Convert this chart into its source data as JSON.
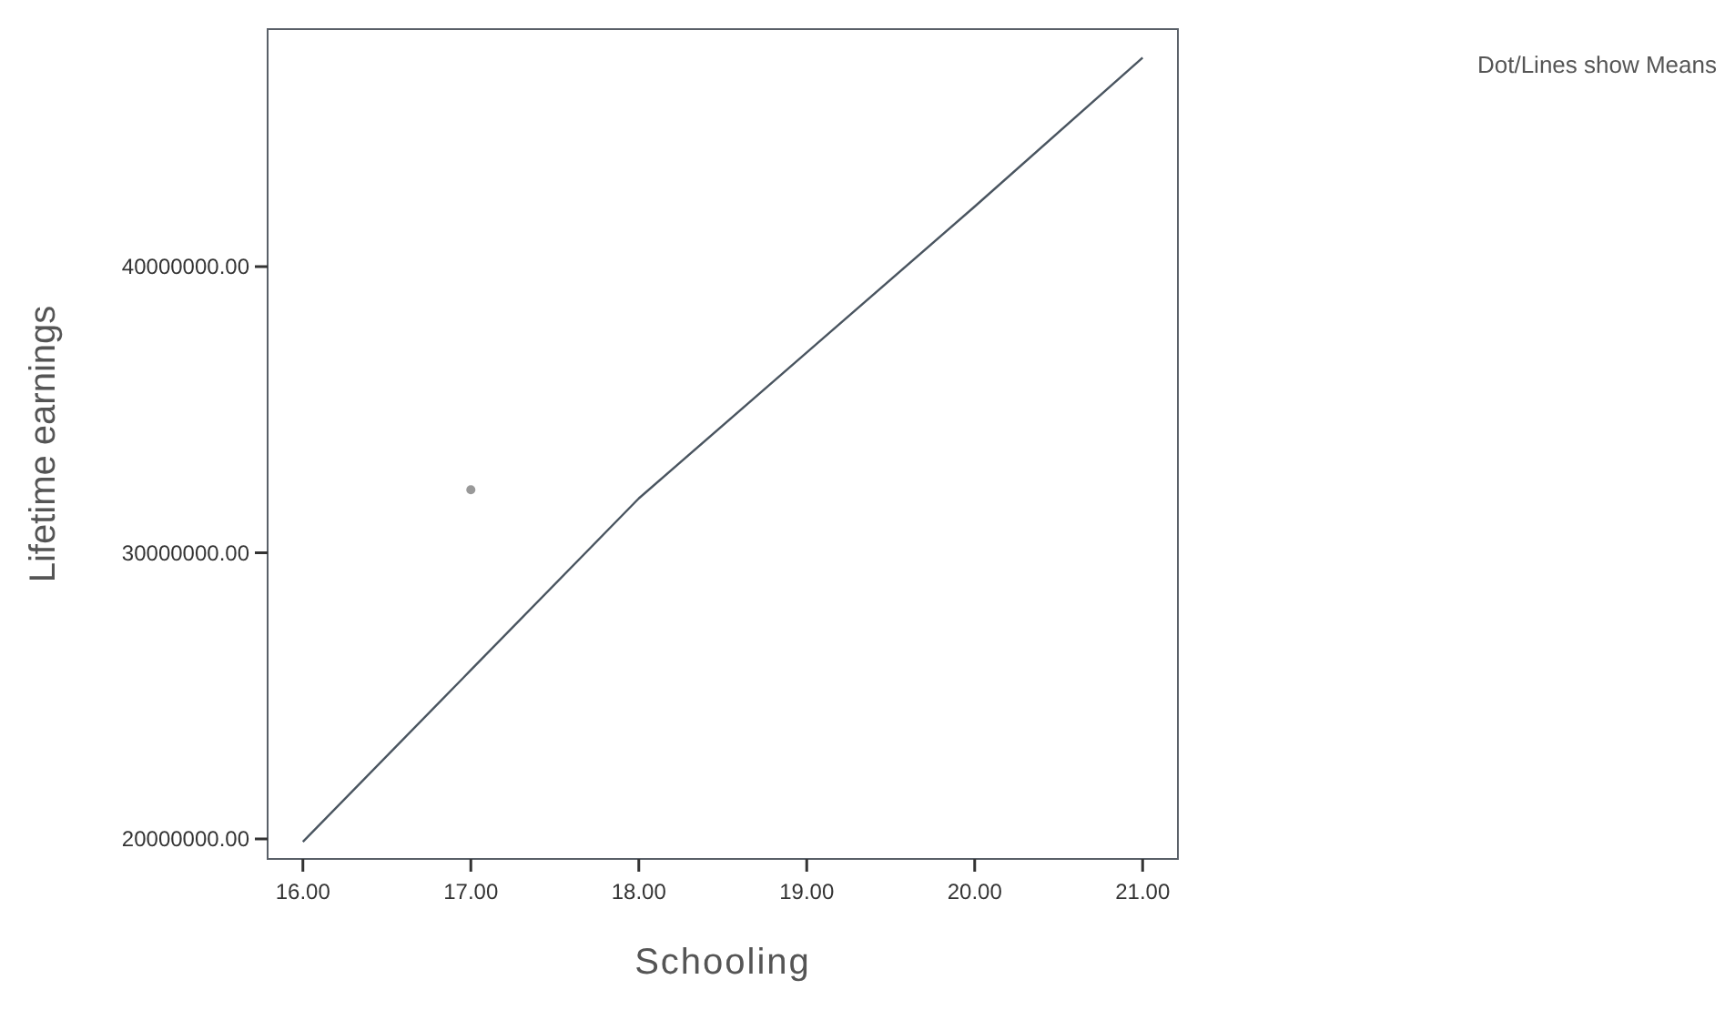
{
  "chart_data": {
    "type": "line",
    "xlabel": "Schooling",
    "ylabel": "Lifetime earnings",
    "annotations": [
      "Dot/Lines show Means"
    ],
    "xlim": [
      15.79,
      21.21
    ],
    "xticks": [
      {
        "value": 16,
        "label": "16.00"
      },
      {
        "value": 17,
        "label": "17.00"
      },
      {
        "value": 18,
        "label": "18.00"
      },
      {
        "value": 19,
        "label": "19.00"
      },
      {
        "value": 20,
        "label": "20.00"
      },
      {
        "value": 21,
        "label": "21.00"
      }
    ],
    "ylim": [
      19300000,
      48300000
    ],
    "yticks": [
      {
        "value": 20000000,
        "label": "20000000.00"
      },
      {
        "value": 30000000,
        "label": "30000000.00"
      },
      {
        "value": 40000000,
        "label": "40000000.00"
      }
    ],
    "grid": false,
    "series": [
      {
        "color": "#4a5560",
        "x": [
          16,
          17,
          18,
          19,
          20,
          21
        ],
        "values": [
          19900000,
          25900000,
          31900000,
          37000000,
          42100000,
          47300000
        ],
        "marker": "none"
      },
      {
        "type": "scatter",
        "color": "#999999",
        "x": [
          17
        ],
        "values": [
          32200000
        ],
        "marker": "circle"
      }
    ]
  }
}
